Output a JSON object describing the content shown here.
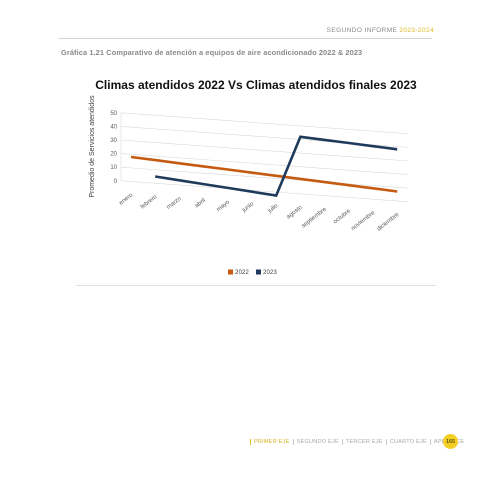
{
  "header": {
    "report_label": "SEGUNDO INFORME",
    "report_years": "2023-2024"
  },
  "figure_caption": "Gráfica 1.21 Comparativo de atención a equipos de aire acondicionado 2022 & 2023",
  "chart_data": {
    "type": "line",
    "title": "Climas atendidos 2022  Vs Climas atendidos finales 2023",
    "xlabel": "",
    "ylabel": "Promedio de Servicios atendidos",
    "categories": [
      "enero",
      "febrero",
      "marzo",
      "abril",
      "mayo",
      "junio",
      "julio",
      "agosto",
      "septiembre",
      "octubre",
      "noviembre",
      "diciembre"
    ],
    "ylim": [
      0,
      50
    ],
    "yticks": [
      0,
      10,
      20,
      30,
      40,
      50
    ],
    "grid": true,
    "legend_position": "bottom",
    "series": [
      {
        "name": "2022",
        "color": "#c55a11",
        "values": [
          18,
          17,
          16,
          15,
          14,
          13,
          12,
          11,
          10,
          9,
          8,
          7
        ]
      },
      {
        "name": "2023",
        "color": "#1f3b5c",
        "values": [
          null,
          5,
          3.5,
          2,
          0.5,
          -1,
          -2.5,
          42,
          41,
          40,
          39,
          38
        ]
      }
    ]
  },
  "footer": {
    "tabs": [
      "PRIMER EJE",
      "SEGUNDO EJE",
      "TERCER EJE",
      "CUARTO EJE",
      "APÉNDICE"
    ],
    "page_number": "165"
  }
}
